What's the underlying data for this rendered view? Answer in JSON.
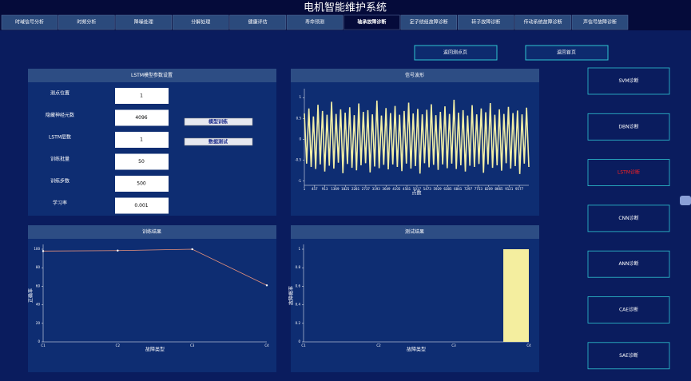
{
  "header": {
    "title": "电机智能维护系统"
  },
  "tabs": [
    "时域信号分析",
    "时频分析",
    "降噪处理",
    "分解处理",
    "健康评估",
    "寿命预测",
    "轴承故障诊断",
    "定子绕组故障诊断",
    "转子故障诊断",
    "传动系统故障诊断",
    "声信号故障诊断"
  ],
  "active_tab": 6,
  "nav_buttons": [
    "返回测点页",
    "返回首页"
  ],
  "params_panel": {
    "title": "LSTM模型参数设置",
    "params": [
      {
        "label": "测点位置",
        "value": 1
      },
      {
        "label": "隐藏神经元数",
        "value": 4096
      },
      {
        "label": "LSTM层数",
        "value": 1
      },
      {
        "label": "训练批量",
        "value": 50
      },
      {
        "label": "训练步数",
        "value": 500
      },
      {
        "label": "学习率",
        "value": 0.001
      }
    ],
    "actions": [
      "模型训练",
      "数据测试"
    ]
  },
  "diagnosis_buttons": [
    "SVM诊断",
    "DBN诊断",
    "LSTM诊断",
    "CNN诊断",
    "ANN诊断",
    "CAE诊断",
    "SAE诊断"
  ],
  "selected_diagnosis": 2,
  "chart_data": [
    {
      "type": "line",
      "title": "信号波形",
      "x_label": "点数",
      "color": "#f3efa6",
      "xlim": [
        1,
        10000
      ],
      "xticks": [
        1,
        457,
        913,
        1369,
        1825,
        2281,
        2737,
        3193,
        3649,
        4105,
        4561,
        5017,
        5473,
        5929,
        6385,
        6841,
        7297,
        7753,
        8209,
        8665,
        9121,
        9577
      ],
      "ylim": [
        -1.1,
        1.1
      ],
      "yticks": [
        1,
        0.5,
        0,
        -0.5,
        -1
      ],
      "values": [
        0.62,
        -0.58,
        0.74,
        -0.66,
        0.55,
        -0.71,
        0.83,
        -0.6,
        0.68,
        -0.77,
        0.59,
        -0.63,
        0.9,
        -0.7,
        0.61,
        -0.56,
        0.72,
        -0.81,
        0.64,
        -0.59,
        0.77,
        -0.68,
        0.58,
        -0.74,
        0.86,
        -0.62,
        0.66,
        -0.57,
        0.7,
        -0.79,
        0.6,
        -0.65,
        0.93,
        -0.69,
        0.57,
        -0.61,
        0.75,
        -0.72,
        0.63,
        -0.6,
        0.8,
        -0.66,
        0.59,
        -0.76,
        0.68,
        -0.58,
        0.88,
        -0.7,
        0.62,
        -0.64,
        0.73,
        -0.82,
        0.6,
        -0.57,
        0.71,
        -0.67,
        0.84,
        -0.61,
        0.58,
        -0.73,
        0.66,
        -0.6,
        0.79,
        -0.69,
        0.61,
        -0.58,
        0.95,
        -0.71,
        0.64,
        -0.62,
        0.7,
        -0.77,
        0.57,
        -0.63,
        0.82,
        -0.66,
        0.6,
        -0.59,
        0.74,
        -0.8,
        0.65,
        -0.6,
        0.87,
        -0.68,
        0.59,
        -0.62,
        0.72,
        -0.75,
        0.61,
        -0.57,
        0.78,
        -0.7,
        0.63,
        -0.64,
        0.69,
        -0.83,
        0.6,
        -0.58,
        0.76,
        -0.66
      ]
    },
    {
      "type": "line",
      "title": "训练结果",
      "x_label": "故障类型",
      "y_label": "正确率",
      "color": "#e8917a",
      "categories": [
        "C1",
        "C2",
        "C3",
        "C4"
      ],
      "values": [
        98,
        98.5,
        100,
        61
      ],
      "ylim": [
        0,
        100
      ],
      "yticks": [
        0,
        20,
        40,
        60,
        80,
        100
      ]
    },
    {
      "type": "bar",
      "title": "测试结果",
      "x_label": "故障类型",
      "y_label": "故障概率",
      "color": "#f4ee9f",
      "categories": [
        "C1",
        "C2",
        "C3",
        "C4"
      ],
      "values": [
        0,
        0,
        0,
        1
      ],
      "ylim": [
        0,
        1
      ],
      "yticks": [
        0,
        0.2,
        0.4,
        0.6,
        0.8,
        1
      ]
    }
  ]
}
